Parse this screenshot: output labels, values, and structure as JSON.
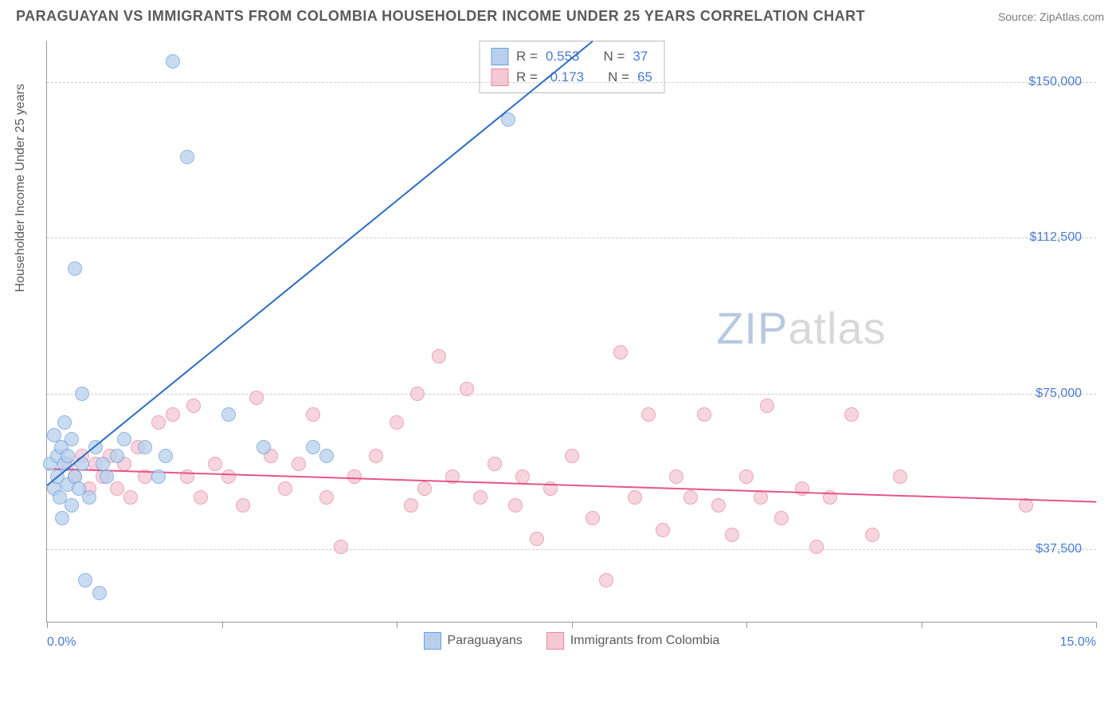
{
  "title": "PARAGUAYAN VS IMMIGRANTS FROM COLOMBIA HOUSEHOLDER INCOME UNDER 25 YEARS CORRELATION CHART",
  "source": "Source: ZipAtlas.com",
  "watermark_bold": "ZIP",
  "watermark_light": "atlas",
  "chart": {
    "type": "scatter",
    "y_axis_label": "Householder Income Under 25 years",
    "xlim": [
      0,
      15
    ],
    "ylim": [
      20000,
      160000
    ],
    "x_min_label": "0.0%",
    "x_max_label": "15.0%",
    "x_tick_positions": [
      0,
      2.5,
      5.0,
      7.5,
      10.0,
      12.5,
      15.0
    ],
    "y_gridlines": [
      37500,
      75000,
      112500,
      150000
    ],
    "y_tick_labels": [
      "$37,500",
      "$75,000",
      "$112,500",
      "$150,000"
    ],
    "background_color": "#ffffff",
    "grid_color": "#cccccc",
    "axis_color": "#9a9a9a",
    "tick_label_color": "#4a7bd0",
    "tick_label_fontsize": 16,
    "axis_label_fontsize": 16,
    "title_fontsize": 18,
    "marker_radius": 9,
    "marker_stroke_width": 1.5,
    "line_width": 2
  },
  "series": {
    "paraguayans": {
      "label": "Paraguayans",
      "fill_color": "#b8d0ed",
      "stroke_color": "#6a9fd8",
      "line_color": "#2d6cc0",
      "R": "0.553",
      "N": "37",
      "regression_start": [
        0,
        53000
      ],
      "regression_end": [
        7.8,
        160000
      ],
      "points": [
        [
          0.05,
          58000
        ],
        [
          0.1,
          52000
        ],
        [
          0.1,
          65000
        ],
        [
          0.15,
          55000
        ],
        [
          0.15,
          60000
        ],
        [
          0.18,
          50000
        ],
        [
          0.2,
          62000
        ],
        [
          0.22,
          45000
        ],
        [
          0.25,
          58000
        ],
        [
          0.25,
          68000
        ],
        [
          0.3,
          53000
        ],
        [
          0.3,
          60000
        ],
        [
          0.35,
          48000
        ],
        [
          0.35,
          64000
        ],
        [
          0.4,
          55000
        ],
        [
          0.4,
          105000
        ],
        [
          0.45,
          52000
        ],
        [
          0.5,
          58000
        ],
        [
          0.5,
          75000
        ],
        [
          0.55,
          30000
        ],
        [
          0.6,
          50000
        ],
        [
          0.7,
          62000
        ],
        [
          0.75,
          27000
        ],
        [
          0.8,
          58000
        ],
        [
          0.85,
          55000
        ],
        [
          1.0,
          60000
        ],
        [
          1.1,
          64000
        ],
        [
          1.4,
          62000
        ],
        [
          1.6,
          55000
        ],
        [
          1.7,
          60000
        ],
        [
          1.8,
          155000
        ],
        [
          2.0,
          132000
        ],
        [
          2.6,
          70000
        ],
        [
          3.1,
          62000
        ],
        [
          3.8,
          62000
        ],
        [
          4.0,
          60000
        ],
        [
          6.6,
          141000
        ]
      ]
    },
    "colombia": {
      "label": "Immigrants from Colombia",
      "fill_color": "#f5c8d4",
      "stroke_color": "#e586a3",
      "line_color": "#e6548a",
      "R": "-0.173",
      "N": "65",
      "regression_start": [
        0,
        57000
      ],
      "regression_end": [
        15,
        49000
      ],
      "points": [
        [
          0.3,
          58000
        ],
        [
          0.4,
          55000
        ],
        [
          0.5,
          60000
        ],
        [
          0.6,
          52000
        ],
        [
          0.7,
          58000
        ],
        [
          0.8,
          55000
        ],
        [
          0.9,
          60000
        ],
        [
          1.0,
          52000
        ],
        [
          1.1,
          58000
        ],
        [
          1.2,
          50000
        ],
        [
          1.3,
          62000
        ],
        [
          1.4,
          55000
        ],
        [
          1.6,
          68000
        ],
        [
          1.8,
          70000
        ],
        [
          2.0,
          55000
        ],
        [
          2.1,
          72000
        ],
        [
          2.2,
          50000
        ],
        [
          2.4,
          58000
        ],
        [
          2.6,
          55000
        ],
        [
          2.8,
          48000
        ],
        [
          3.0,
          74000
        ],
        [
          3.2,
          60000
        ],
        [
          3.4,
          52000
        ],
        [
          3.6,
          58000
        ],
        [
          3.8,
          70000
        ],
        [
          4.0,
          50000
        ],
        [
          4.2,
          38000
        ],
        [
          4.4,
          55000
        ],
        [
          4.7,
          60000
        ],
        [
          5.0,
          68000
        ],
        [
          5.2,
          48000
        ],
        [
          5.4,
          52000
        ],
        [
          5.6,
          84000
        ],
        [
          5.8,
          55000
        ],
        [
          6.0,
          76000
        ],
        [
          6.2,
          50000
        ],
        [
          6.4,
          58000
        ],
        [
          6.7,
          48000
        ],
        [
          6.8,
          55000
        ],
        [
          7.0,
          40000
        ],
        [
          7.2,
          52000
        ],
        [
          7.5,
          60000
        ],
        [
          7.8,
          45000
        ],
        [
          8.0,
          30000
        ],
        [
          8.2,
          85000
        ],
        [
          8.4,
          50000
        ],
        [
          8.6,
          70000
        ],
        [
          8.8,
          42000
        ],
        [
          9.0,
          55000
        ],
        [
          9.2,
          50000
        ],
        [
          9.4,
          70000
        ],
        [
          9.6,
          48000
        ],
        [
          9.8,
          41000
        ],
        [
          10.0,
          55000
        ],
        [
          10.2,
          50000
        ],
        [
          10.3,
          72000
        ],
        [
          10.5,
          45000
        ],
        [
          10.8,
          52000
        ],
        [
          11.0,
          38000
        ],
        [
          11.2,
          50000
        ],
        [
          11.5,
          70000
        ],
        [
          11.8,
          41000
        ],
        [
          12.2,
          55000
        ],
        [
          14.0,
          48000
        ],
        [
          5.3,
          75000
        ]
      ]
    }
  },
  "stats_box": {
    "r_label": "R =",
    "n_label": "N ="
  }
}
